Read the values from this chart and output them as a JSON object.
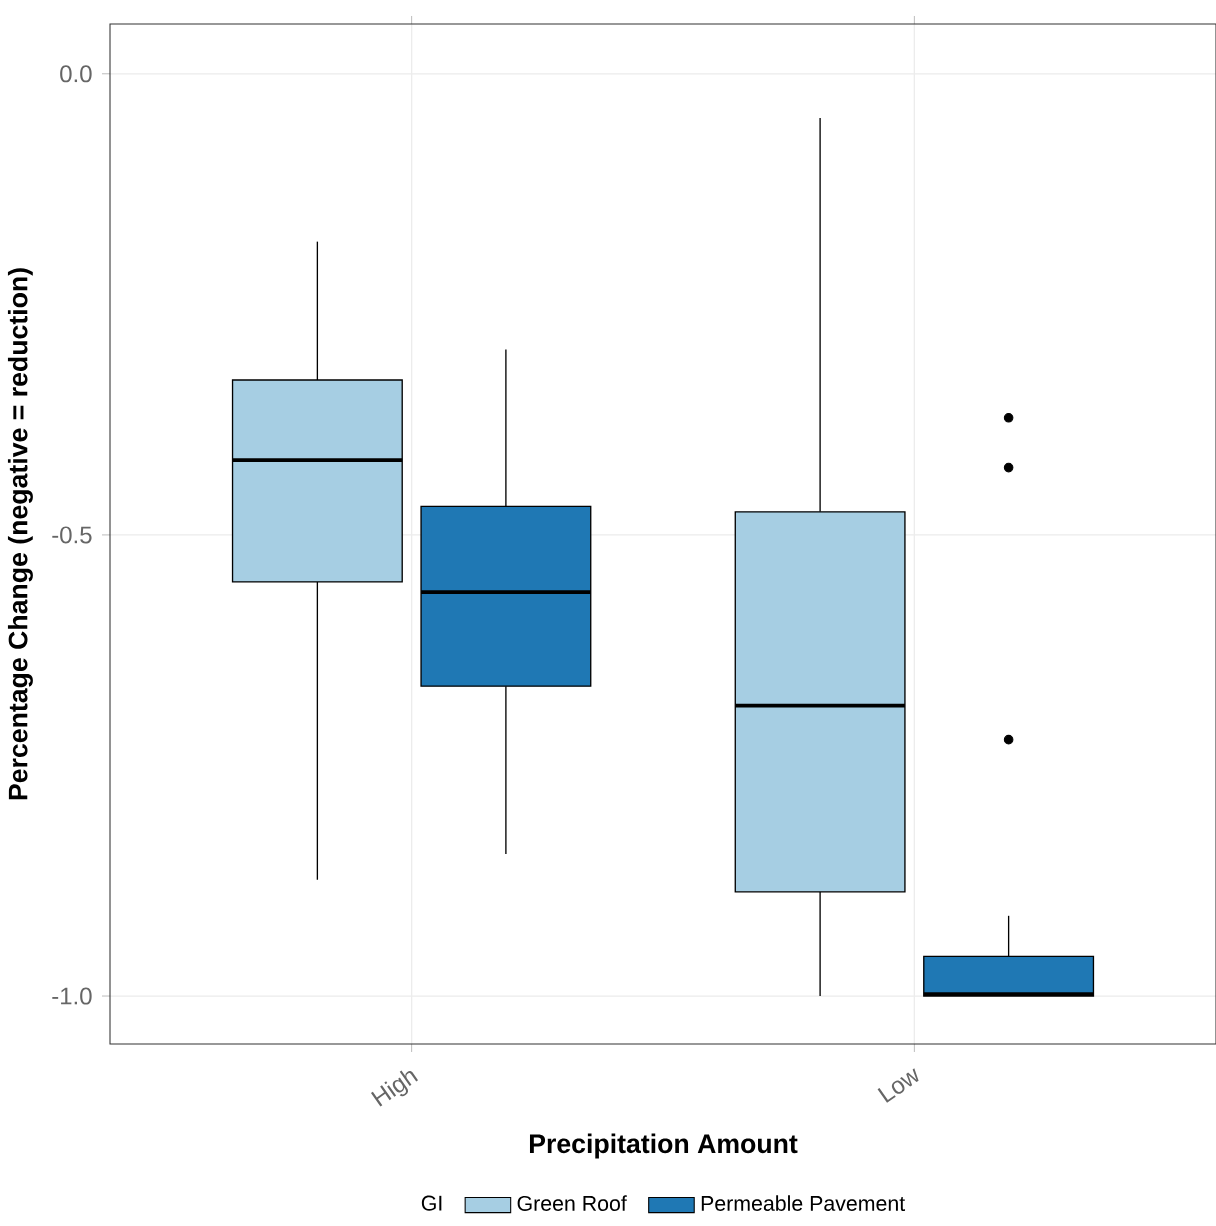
{
  "chart_data": {
    "type": "box",
    "xlabel": "Precipitation Amount",
    "ylabel": "Percentage Change (negative = reduction)",
    "legend_title": "GI",
    "legend": "bottom",
    "grid": true,
    "categories": [
      "High",
      "Low"
    ],
    "ylim": [
      -1.052,
      0.054
    ],
    "yticks": [
      {
        "value": -1.0,
        "label": "-1.0"
      },
      {
        "value": -0.5,
        "label": "-0.5"
      },
      {
        "value": 0.0,
        "label": "0.0"
      }
    ],
    "series": [
      {
        "name": "Green Roof",
        "color": "#a6cee3",
        "boxes": [
          {
            "low": -0.874,
            "q1": -0.551,
            "median": -0.419,
            "q3": -0.332,
            "high": -0.182
          },
          {
            "low": -1.0,
            "q1": -0.887,
            "median": -0.685,
            "q3": -0.475,
            "high": -0.048
          }
        ]
      },
      {
        "name": "Permeable Pavement",
        "color": "#1f78b4",
        "boxes": [
          {
            "low": -0.846,
            "q1": -0.664,
            "median": -0.562,
            "q3": -0.469,
            "high": -0.299
          },
          {
            "low": -1.0,
            "q1": -1.0,
            "median": -0.998,
            "q3": -0.957,
            "high": -0.913,
            "outliers": [
              -0.373,
              -0.427,
              -0.722
            ]
          }
        ]
      }
    ]
  }
}
